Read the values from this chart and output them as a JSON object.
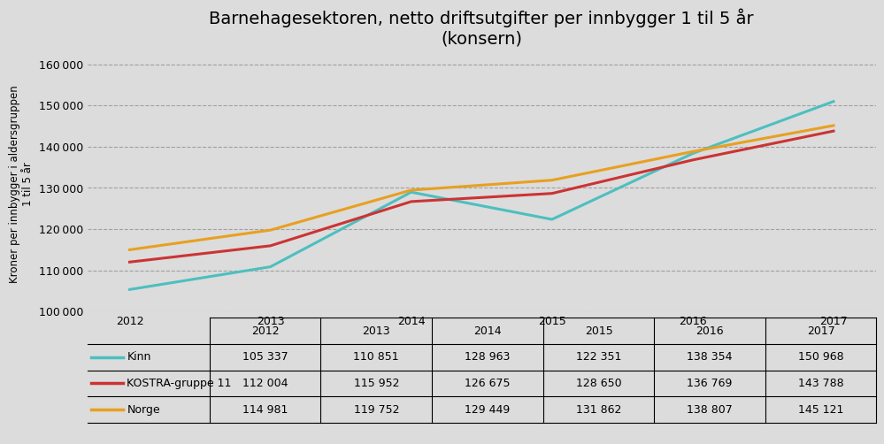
{
  "title": "Barnehagesektoren, netto driftsutgifter per innbygger 1 til 5 år\n(konsern)",
  "ylabel": "Kroner per innbygger i aldersgruppen\n1 til 5 år",
  "years": [
    2012,
    2013,
    2014,
    2015,
    2016,
    2017
  ],
  "series": [
    {
      "name": "Kinn",
      "color": "#4DBFBF",
      "values": [
        105337,
        110851,
        128963,
        122351,
        138354,
        150968
      ]
    },
    {
      "name": "KOSTRA-gruppe 11",
      "color": "#CC3333",
      "values": [
        112004,
        115952,
        126675,
        128650,
        136769,
        143788
      ]
    },
    {
      "name": "Norge",
      "color": "#E8A020",
      "values": [
        114981,
        119752,
        129449,
        131862,
        138807,
        145121
      ]
    }
  ],
  "ylim": [
    100000,
    162000
  ],
  "yticks": [
    100000,
    110000,
    120000,
    130000,
    140000,
    150000,
    160000
  ],
  "background_color": "#DCDCDC",
  "title_fontsize": 14,
  "label_fontsize": 8.5,
  "tick_fontsize": 9,
  "table_rows": [
    [
      "Kinn",
      "105 337",
      "110 851",
      "128 963",
      "122 351",
      "138 354",
      "150 968"
    ],
    [
      "KOSTRA-gruppe 11",
      "112 004",
      "115 952",
      "126 675",
      "128 650",
      "136 769",
      "143 788"
    ],
    [
      "Norge",
      "114 981",
      "119 752",
      "129 449",
      "131 862",
      "138 807",
      "145 121"
    ]
  ],
  "table_col_labels": [
    "",
    "2012",
    "2013",
    "2014",
    "2015",
    "2016",
    "2017"
  ],
  "line_width": 2.2,
  "grid_color": "#888888",
  "grid_style": "--",
  "grid_alpha": 0.7
}
